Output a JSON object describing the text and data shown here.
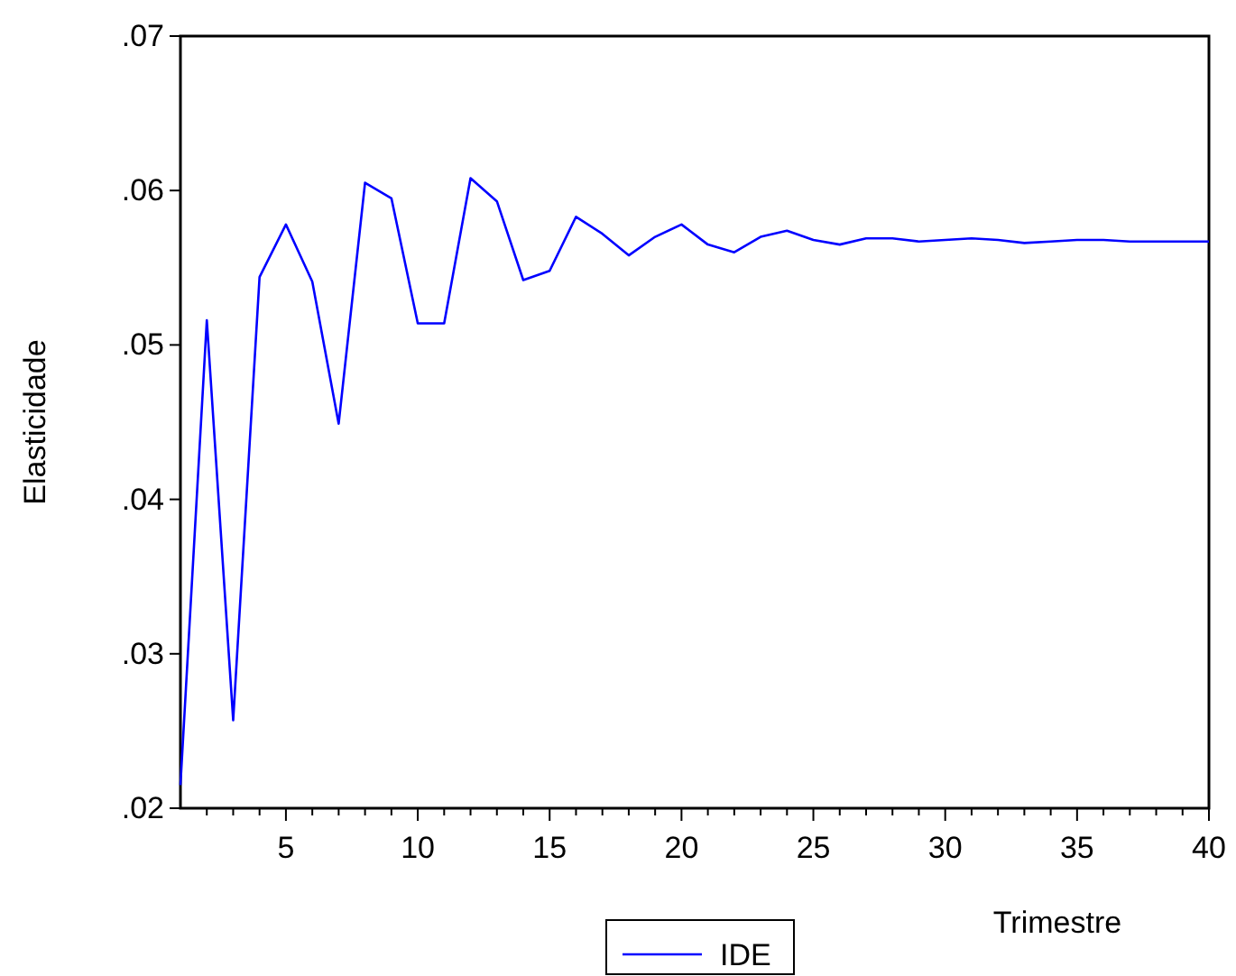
{
  "chart_data": {
    "type": "line",
    "xlabel": "Trimestre",
    "ylabel": "Elasticidade",
    "x": [
      1,
      2,
      3,
      4,
      5,
      6,
      7,
      8,
      9,
      10,
      11,
      12,
      13,
      14,
      15,
      16,
      17,
      18,
      19,
      20,
      21,
      22,
      23,
      24,
      25,
      26,
      27,
      28,
      29,
      30,
      31,
      32,
      33,
      34,
      35,
      36,
      37,
      38,
      39,
      40
    ],
    "series": [
      {
        "name": "IDE",
        "color": "#0000ff",
        "values": [
          0.0215,
          0.0516,
          0.0257,
          0.0544,
          0.0578,
          0.0541,
          0.0449,
          0.0605,
          0.0595,
          0.0514,
          0.0514,
          0.0608,
          0.0593,
          0.0542,
          0.0548,
          0.0583,
          0.0572,
          0.0558,
          0.057,
          0.0578,
          0.0565,
          0.056,
          0.057,
          0.0574,
          0.0568,
          0.0565,
          0.0569,
          0.0569,
          0.0567,
          0.0568,
          0.0569,
          0.0568,
          0.0566,
          0.0567,
          0.0568,
          0.0568,
          0.0567,
          0.0567,
          0.0567,
          0.0567
        ]
      }
    ],
    "xlim": [
      1,
      40
    ],
    "xticks": [
      {
        "value": 2,
        "label": null
      },
      {
        "value": 3,
        "label": null
      },
      {
        "value": 4,
        "label": null
      },
      5,
      {
        "value": 6,
        "label": null
      },
      {
        "value": 7,
        "label": null
      },
      {
        "value": 8,
        "label": null
      },
      {
        "value": 9,
        "label": null
      },
      10,
      {
        "value": 11,
        "label": null
      },
      {
        "value": 12,
        "label": null
      },
      {
        "value": 13,
        "label": null
      },
      {
        "value": 14,
        "label": null
      },
      15,
      {
        "value": 16,
        "label": null
      },
      {
        "value": 17,
        "label": null
      },
      {
        "value": 18,
        "label": null
      },
      {
        "value": 19,
        "label": null
      },
      20,
      {
        "value": 21,
        "label": null
      },
      {
        "value": 22,
        "label": null
      },
      {
        "value": 23,
        "label": null
      },
      {
        "value": 24,
        "label": null
      },
      25,
      {
        "value": 26,
        "label": null
      },
      {
        "value": 27,
        "label": null
      },
      {
        "value": 28,
        "label": null
      },
      {
        "value": 29,
        "label": null
      },
      30,
      {
        "value": 31,
        "label": null
      },
      {
        "value": 32,
        "label": null
      },
      {
        "value": 33,
        "label": null
      },
      {
        "value": 34,
        "label": null
      },
      35,
      {
        "value": 36,
        "label": null
      },
      {
        "value": 37,
        "label": null
      },
      {
        "value": 38,
        "label": null
      },
      {
        "value": 39,
        "label": null
      },
      40
    ],
    "ylim": [
      0.02,
      0.07
    ],
    "yticks": [
      {
        "value": 0.02,
        "label": ".02"
      },
      {
        "value": 0.03,
        "label": ".03"
      },
      {
        "value": 0.04,
        "label": ".04"
      },
      {
        "value": 0.05,
        "label": ".05"
      },
      {
        "value": 0.06,
        "label": ".06"
      },
      {
        "value": 0.07,
        "label": ".07"
      }
    ],
    "grid": false,
    "legend": "bottom",
    "marker": "none",
    "line_style": "solid"
  }
}
